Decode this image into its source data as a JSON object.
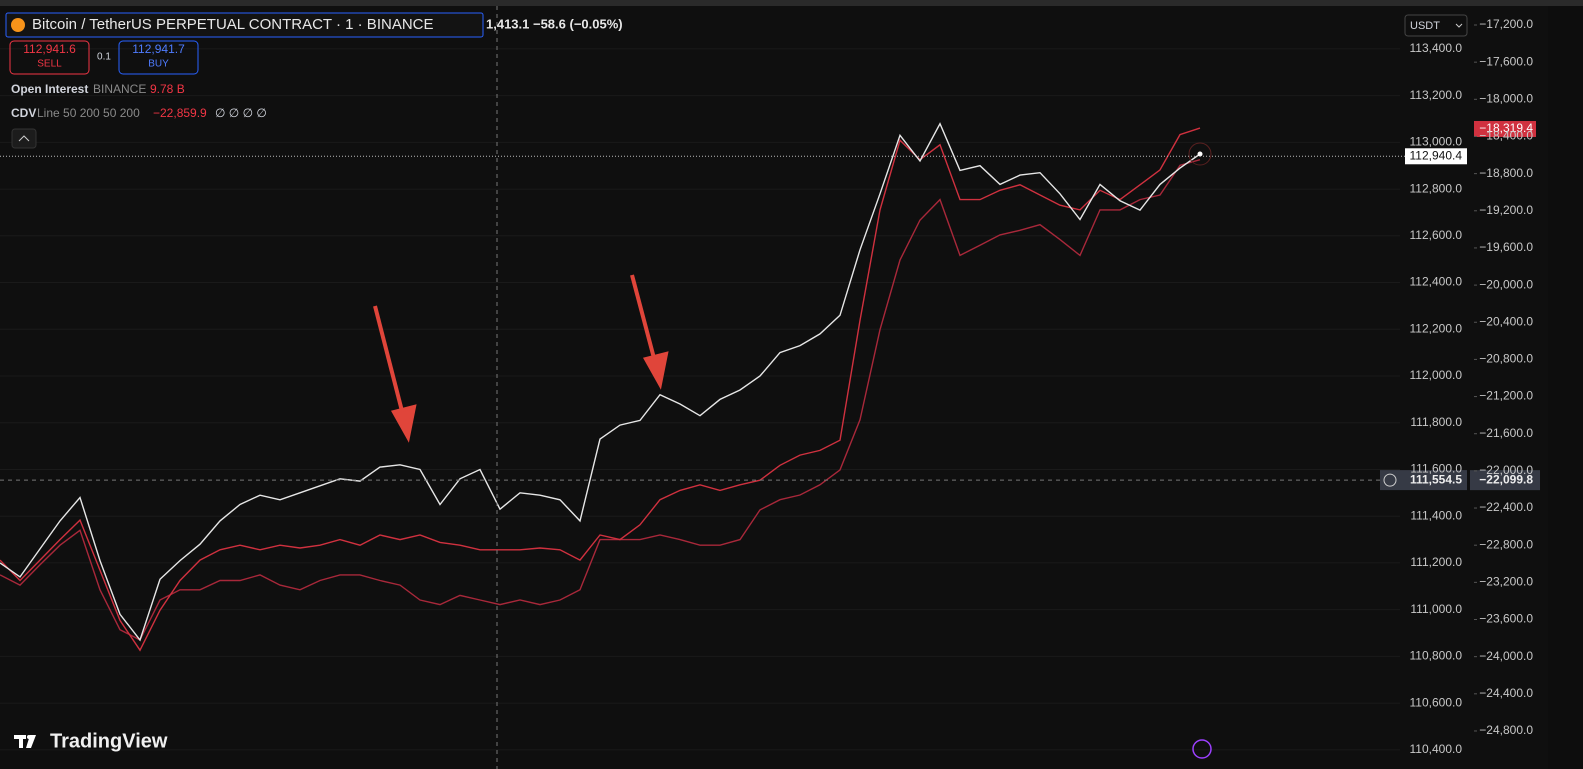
{
  "chart_data": {
    "type": "line",
    "title": "Bitcoin / TetherUS PERPETUAL CONTRACT · 1 · BINANCE",
    "quote": "1,413.1 −58.6 (−0.05%)",
    "sell_price": "112,941.6",
    "sell_label": "SELL",
    "quantity": "0.1",
    "buy_price": "112,941.7",
    "buy_label": "BUY",
    "indicators": [
      {
        "params": "BINANCE",
        "value": "9.78 B"
      },
      {
        "params": "Line 50 200 50 200",
        "value": "−22,859.9",
        "extra": "∅ ∅ ∅ ∅"
      }
    ],
    "currency": "USDT",
    "brand": "TradingView",
    "grid": true,
    "ylim": [
      110348,
      113575
    ],
    "yticks": [
      {
        "value": 110400,
        "label": "110,400.0"
      },
      {
        "value": 110600,
        "label": "110,600.0"
      },
      {
        "value": 110800,
        "label": "110,800.0"
      },
      {
        "value": 111000,
        "label": "111,000.0"
      },
      {
        "value": 111200,
        "label": "111,200.0"
      },
      {
        "value": 111400,
        "label": "111,400.0"
      },
      {
        "value": 111600,
        "label": "111,600.0"
      },
      {
        "value": 111800,
        "label": "111,800.0"
      },
      {
        "value": 112000,
        "label": "112,000.0"
      },
      {
        "value": 112200,
        "label": "112,200.0"
      },
      {
        "value": 112400,
        "label": "112,400.0"
      },
      {
        "value": 112600,
        "label": "112,600.0"
      },
      {
        "value": 112800,
        "label": "112,800.0"
      },
      {
        "value": 113000,
        "label": "113,000.0"
      },
      {
        "value": 113200,
        "label": "113,200.0"
      },
      {
        "value": 113400,
        "label": "113,400.0"
      }
    ],
    "y2lim": [
      -25134,
      -17017
    ],
    "y2ticks": [
      {
        "value": -24800,
        "label": "−24,800.0"
      },
      {
        "value": -24400,
        "label": "−24,400.0"
      },
      {
        "value": -24000,
        "label": "−24,000.0"
      },
      {
        "value": -23600,
        "label": "−23,600.0"
      },
      {
        "value": -23200,
        "label": "−23,200.0"
      },
      {
        "value": -22800,
        "label": "−22,800.0"
      },
      {
        "value": -22400,
        "label": "−22,400.0"
      },
      {
        "value": -22000,
        "label": "−22,000.0"
      },
      {
        "value": -21600,
        "label": "−21,600.0"
      },
      {
        "value": -21200,
        "label": "−21,200.0"
      },
      {
        "value": -20800,
        "label": "−20,800.0"
      },
      {
        "value": -20400,
        "label": "−20,400.0"
      },
      {
        "value": -20000,
        "label": "−20,000.0"
      },
      {
        "value": -19600,
        "label": "−19,600.0"
      },
      {
        "value": -19200,
        "label": "−19,200.0"
      },
      {
        "value": -18800,
        "label": "−18,800.0"
      },
      {
        "value": -18400,
        "label": "−18,400.0"
      },
      {
        "value": -18000,
        "label": "−18,000.0"
      },
      {
        "value": -17600,
        "label": "−17,600.0"
      },
      {
        "value": -17200,
        "label": "−17,200.0"
      }
    ],
    "last_price": {
      "value": 112940.4,
      "label": "112,940.4"
    },
    "crosshair_price": {
      "value": 111554.5,
      "label": "111,554.5"
    },
    "crosshair_y2": {
      "value": -22099.8,
      "label": "−22,099.8"
    },
    "last_y2": {
      "value": -18319.4,
      "label": "−18,319.4"
    },
    "series": [
      {
        "color": "#e6e6e6",
        "values": [
          111200,
          111140,
          111260,
          111380,
          111480,
          111210,
          110980,
          110870,
          111130,
          111210,
          111280,
          111380,
          111450,
          111490,
          111470,
          111500,
          111530,
          111560,
          111550,
          111610,
          111620,
          111600,
          111450,
          111560,
          111600,
          111430,
          111500,
          111490,
          111470,
          111380,
          111730,
          111790,
          111810,
          111920,
          111880,
          111830,
          111900,
          111940,
          112000,
          112100,
          112130,
          112180,
          112260,
          112540,
          112780,
          113030,
          112920,
          113080,
          112880,
          112900,
          112820,
          112860,
          112870,
          112780,
          112670,
          112820,
          112750,
          112710,
          112820,
          112890,
          112950
        ]
      },
      {
        "name": "CDV",
        "color": "#d0313f",
        "axis": "y2",
        "values": [
          -22960,
          -23180,
          -22960,
          -22740,
          -22530,
          -23070,
          -23610,
          -23930,
          -23500,
          -23180,
          -22960,
          -22850,
          -22800,
          -22850,
          -22800,
          -22830,
          -22800,
          -22740,
          -22800,
          -22690,
          -22740,
          -22690,
          -22770,
          -22800,
          -22850,
          -22850,
          -22850,
          -22830,
          -22850,
          -22960,
          -22690,
          -22740,
          -22580,
          -22310,
          -22210,
          -22150,
          -22210,
          -22150,
          -22100,
          -21940,
          -21830,
          -21780,
          -21670,
          -20380,
          -19190,
          -18440,
          -18650,
          -18490,
          -19080,
          -19080,
          -18980,
          -18920,
          -19030,
          -19140,
          -19190,
          -18980,
          -19080,
          -18920,
          -18760,
          -18380,
          -18310
        ]
      },
      {
        "name": "Open Interest",
        "color": "#a8283a",
        "axis": "y2",
        "values": [
          -23120,
          -23230,
          -23010,
          -22800,
          -22640,
          -23280,
          -23710,
          -23820,
          -23390,
          -23280,
          -23280,
          -23180,
          -23180,
          -23120,
          -23230,
          -23280,
          -23180,
          -23120,
          -23120,
          -23180,
          -23230,
          -23390,
          -23440,
          -23340,
          -23390,
          -23440,
          -23390,
          -23440,
          -23390,
          -23280,
          -22740,
          -22740,
          -22740,
          -22690,
          -22740,
          -22800,
          -22800,
          -22740,
          -22420,
          -22310,
          -22260,
          -22150,
          -21990,
          -21450,
          -20480,
          -19730,
          -19300,
          -19080,
          -19680,
          -19570,
          -19460,
          -19410,
          -19350,
          -19510,
          -19680,
          -19190,
          -19190,
          -19080,
          -19030,
          -18710,
          -18650
        ]
      }
    ]
  }
}
